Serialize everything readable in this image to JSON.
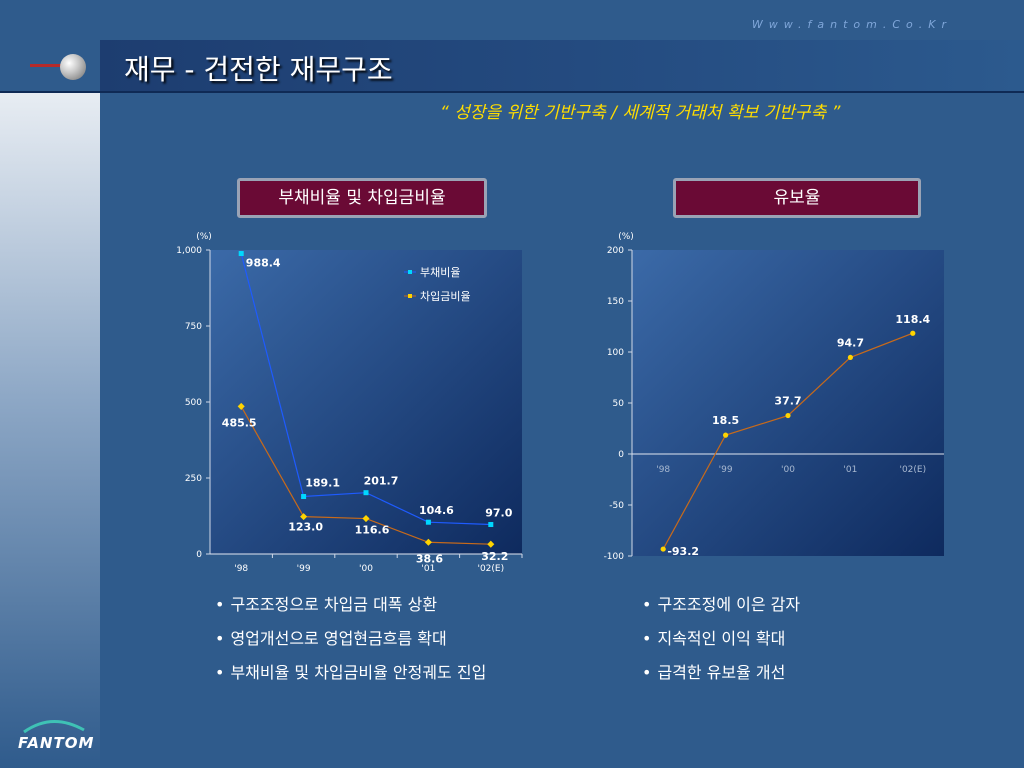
{
  "header": {
    "url": "Www.fantom.Co.Kr",
    "title": "재무 - 건전한 재무구조",
    "subtitle": "“ 성장을 위한 기반구축 / 세계적 거래처 확보 기반구축 ”"
  },
  "logo": {
    "text": "FANTOM"
  },
  "left_panel": {
    "label": "부채비율 및 차입금비율",
    "bullets": [
      "구조조정으로 차입금 대폭 상환",
      "영업개선으로 영업현금흐름 확대",
      "부채비율 및 차입금비율 안정궤도 진입"
    ]
  },
  "right_panel": {
    "label": "유보율",
    "bullets": [
      "구조조정에 이은 감자",
      "지속적인 이익 확대",
      "급격한 유보율 개선"
    ]
  },
  "chart_data": [
    {
      "type": "line",
      "unit_label": "(%)",
      "categories": [
        "'98",
        "'99",
        "'00",
        "'01",
        "'02(E)"
      ],
      "ylim": [
        0,
        1000
      ],
      "yticks": [
        "0",
        "250",
        "500",
        "750",
        "1,000"
      ],
      "ytick_values": [
        0,
        250,
        500,
        750,
        1000
      ],
      "series": [
        {
          "name": "부채비율",
          "values": [
            988.4,
            189.1,
            201.7,
            104.6,
            97.0
          ],
          "labels": [
            "988.4",
            "189.1",
            "201.7",
            "104.6",
            "97.0"
          ],
          "color": "#1e5bff",
          "marker_color": "#00d8ff"
        },
        {
          "name": "차입금비율",
          "values": [
            485.5,
            123.0,
            116.6,
            38.6,
            32.2
          ],
          "labels": [
            "485.5",
            "123.0",
            "116.6",
            "38.6",
            "32.2"
          ],
          "color": "#c86a1a",
          "marker_color": "#ffd400"
        }
      ],
      "legend_position": "top-right",
      "grid": false
    },
    {
      "type": "line",
      "unit_label": "(%)",
      "categories": [
        "'98",
        "'99",
        "'00",
        "'01",
        "'02(E)"
      ],
      "ylim": [
        -100,
        200
      ],
      "yticks": [
        "-100",
        "-50",
        "0",
        "50",
        "100",
        "150",
        "200"
      ],
      "ytick_values": [
        -100,
        -50,
        0,
        50,
        100,
        150,
        200
      ],
      "series": [
        {
          "values": [
            -93.2,
            18.5,
            37.7,
            94.7,
            118.4
          ],
          "labels": [
            "-93.2",
            "18.5",
            "37.7",
            "94.7",
            "118.4"
          ],
          "color": "#c86a1a",
          "marker_color": "#ffd400"
        }
      ],
      "grid": false
    }
  ]
}
